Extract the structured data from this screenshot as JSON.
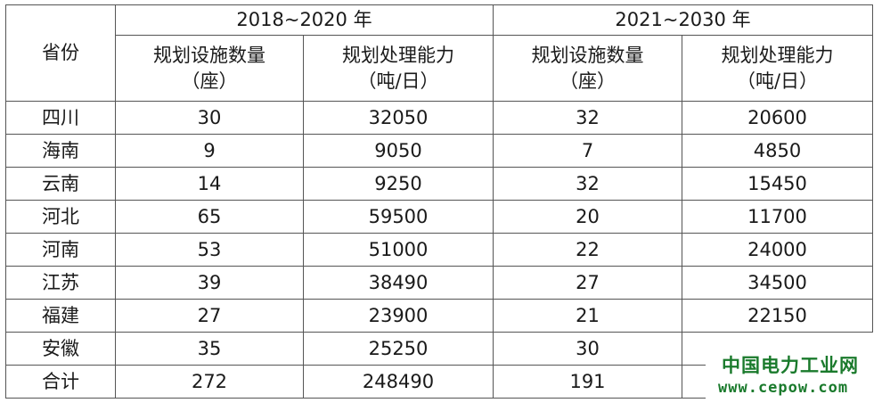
{
  "table": {
    "header": {
      "province_label": "省份",
      "period1": "2018~2020 年",
      "period2": "2021~2030 年",
      "col_facilities": "规划设施数量",
      "col_facilities_unit": "（座）",
      "col_capacity": "规划处理能力",
      "col_capacity_unit": "（吨/日）"
    },
    "rows": [
      {
        "province": "四川",
        "f1": "30",
        "c1": "32050",
        "f2": "32",
        "c2": "20600"
      },
      {
        "province": "海南",
        "f1": "9",
        "c1": "9050",
        "f2": "7",
        "c2": "4850"
      },
      {
        "province": "云南",
        "f1": "14",
        "c1": "9250",
        "f2": "32",
        "c2": "15450"
      },
      {
        "province": "河北",
        "f1": "65",
        "c1": "59500",
        "f2": "20",
        "c2": "11700"
      },
      {
        "province": "河南",
        "f1": "53",
        "c1": "51000",
        "f2": "22",
        "c2": "24000"
      },
      {
        "province": "江苏",
        "f1": "39",
        "c1": "38490",
        "f2": "27",
        "c2": "34500"
      },
      {
        "province": "福建",
        "f1": "27",
        "c1": "23900",
        "f2": "21",
        "c2": "22150"
      },
      {
        "province": "安徽",
        "f1": "35",
        "c1": "25250",
        "f2": "30",
        "c2": ""
      },
      {
        "province": "合计",
        "f1": "272",
        "c1": "248490",
        "f2": "191",
        "c2": ""
      }
    ]
  },
  "watermark": {
    "name": "中国电力工业网",
    "url": "www.cepow.com",
    "color": "#1a7a2c"
  }
}
